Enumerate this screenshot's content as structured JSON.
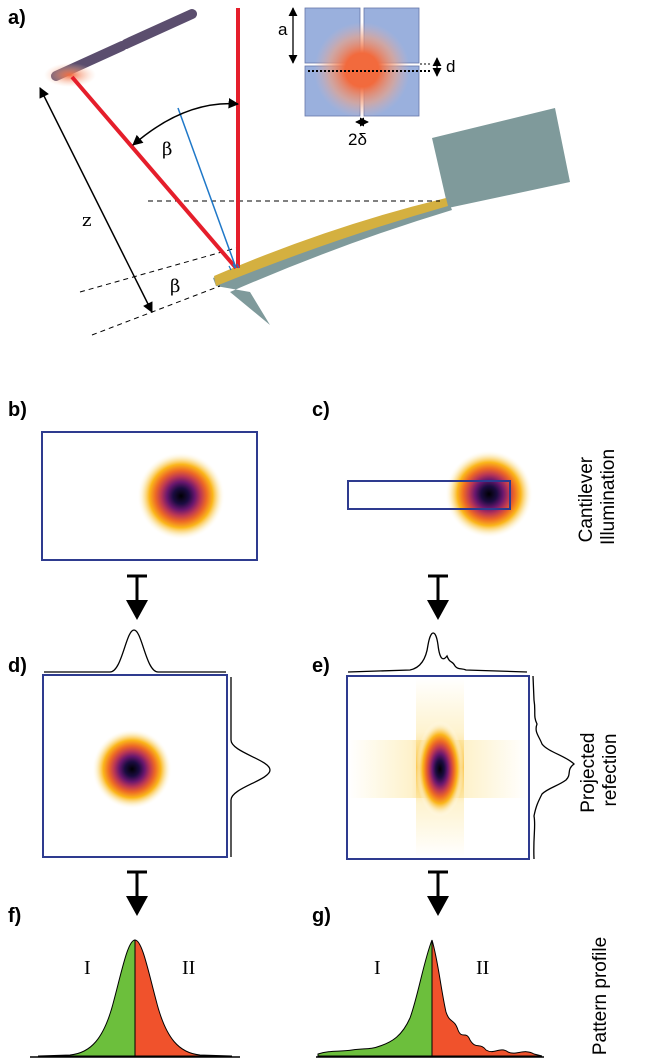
{
  "panels": {
    "a": "a)",
    "b": "b)",
    "c": "c)",
    "d": "d)",
    "e": "e)",
    "f": "f)",
    "g": "g)"
  },
  "geometry_labels": {
    "beta_top": "β",
    "beta_bottom": "β",
    "z": "z",
    "inset_a": "a",
    "inset_d": "d",
    "inset_2delta": "2δ"
  },
  "side_labels": {
    "cantilever_line1": "Cantilever",
    "cantilever_line2": "Illumination",
    "projected_line1": "Projected",
    "projected_line2": "refection",
    "pattern": "Pattern profile"
  },
  "profile_regions": {
    "f_left": "I",
    "f_right": "II",
    "g_left": "I",
    "g_right": "II"
  },
  "colors": {
    "laser_beam": "#e51e2b",
    "normal_line": "#1f78c8",
    "cantilever": "#7f9a9b",
    "gold_coating": "#d4b040",
    "frame_blue": "#2e3b8f",
    "quadrant_blue": "#9ab0dd",
    "spot_orange": "#f26a3d",
    "profile_green": "#6cbf3c",
    "profile_red": "#f0522c",
    "rod": "#5b4e6e"
  },
  "colormap": "inferno (inverted)"
}
